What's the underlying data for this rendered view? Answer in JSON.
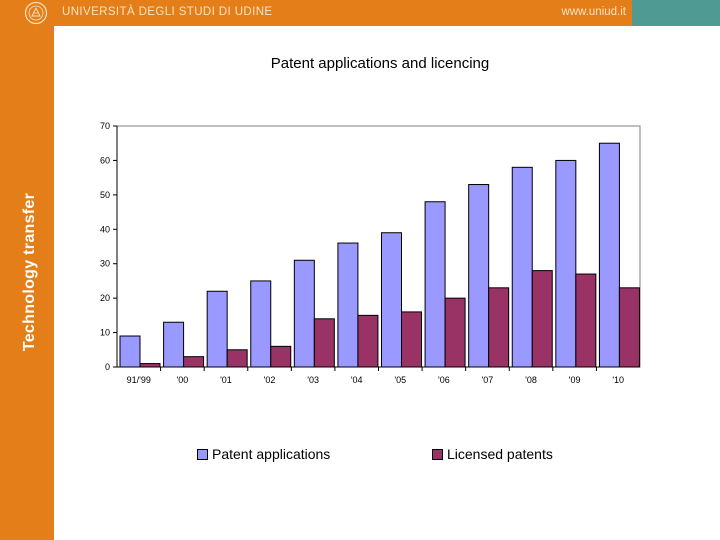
{
  "header": {
    "university": "UNIVERSITÀ DEGLI STUDI DI UDINE",
    "url": "www.uniud.it"
  },
  "sidebar": {
    "title": "Technology transfer"
  },
  "colors": {
    "orange": "#e37e18",
    "teal": "#4f9a93",
    "patent_bar": "#9999ff",
    "licensed_bar": "#993366"
  },
  "chart_data": {
    "type": "bar",
    "title": "Patent applications and licencing",
    "categories": [
      "91/'99",
      "'00",
      "'01",
      "'02",
      "'03",
      "'04",
      "'05",
      "'06",
      "'07",
      "'08",
      "'09",
      "'10"
    ],
    "series": [
      {
        "name": "Patent applications",
        "values": [
          9,
          13,
          22,
          25,
          31,
          36,
          39,
          48,
          53,
          58,
          60,
          65
        ]
      },
      {
        "name": "Licensed patents",
        "values": [
          1,
          3,
          5,
          6,
          14,
          15,
          16,
          20,
          23,
          28,
          27,
          23
        ]
      }
    ],
    "ylim": [
      0,
      70
    ],
    "yticks": [
      0,
      10,
      20,
      30,
      40,
      50,
      60,
      70
    ],
    "grid": false,
    "legend": "bottom"
  }
}
